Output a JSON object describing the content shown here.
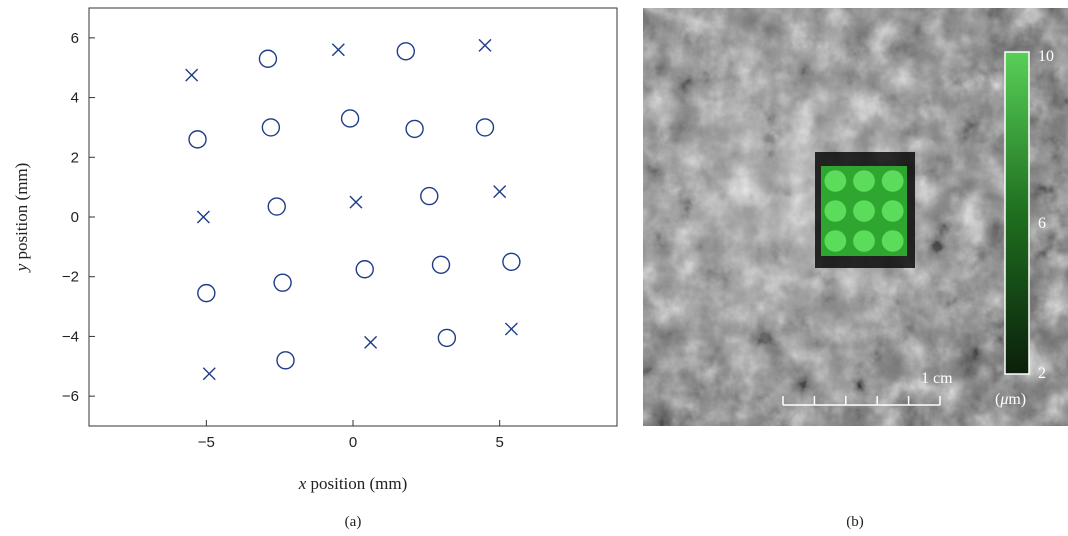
{
  "panel_a_label": "(a)",
  "panel_b_label": "(b)",
  "chart_data": [
    {
      "type": "scatter",
      "xlabel": "x position (mm)",
      "ylabel": "y position (mm)",
      "xlabel_var": "x",
      "xlabel_rest": " position (mm)",
      "ylabel_var": "y",
      "ylabel_rest": " position (mm)",
      "xlim": [
        -9,
        9
      ],
      "ylim": [
        -7,
        7
      ],
      "xticks": [
        -5,
        0,
        5
      ],
      "xtick_labels": [
        "−5",
        "0",
        "5"
      ],
      "yticks": [
        6,
        4,
        2,
        0,
        -2,
        -4,
        -6
      ],
      "ytick_labels": [
        "6",
        "4",
        "2",
        "0",
        "−2",
        "−4",
        "−6"
      ],
      "grid": false,
      "marker_color": "#1f3c88",
      "series": [
        {
          "marker": "circle",
          "points": [
            [
              -2.9,
              5.3
            ],
            [
              1.8,
              5.55
            ],
            [
              -5.3,
              2.6
            ],
            [
              -2.8,
              3.0
            ],
            [
              -0.1,
              3.3
            ],
            [
              2.1,
              2.95
            ],
            [
              4.5,
              3.0
            ],
            [
              -2.6,
              0.35
            ],
            [
              2.6,
              0.7
            ],
            [
              -5.0,
              -2.55
            ],
            [
              -2.4,
              -2.2
            ],
            [
              0.4,
              -1.75
            ],
            [
              3.0,
              -1.6
            ],
            [
              5.4,
              -1.5
            ],
            [
              -2.3,
              -4.8
            ],
            [
              3.2,
              -4.05
            ]
          ]
        },
        {
          "marker": "x",
          "points": [
            [
              -5.5,
              4.75
            ],
            [
              -0.5,
              5.6
            ],
            [
              4.5,
              5.75
            ],
            [
              -5.1,
              0.0
            ],
            [
              0.1,
              0.5
            ],
            [
              5.0,
              0.85
            ],
            [
              -4.9,
              -5.25
            ],
            [
              0.6,
              -4.2
            ],
            [
              5.4,
              -3.75
            ]
          ]
        }
      ]
    },
    {
      "type": "heatmap",
      "colorbar_max": "10",
      "colorbar_mid": "6",
      "colorbar_min": "2",
      "colorbar_range": [
        2,
        10
      ],
      "colorbar_unit_open": "(",
      "colorbar_unit_mu": "μ",
      "colorbar_unit_close": "m)",
      "scalebar_label": "1 cm",
      "scalebar_ticks": 6,
      "overlay_grid": {
        "cols": 3,
        "rows": 3
      },
      "colors": {
        "low": "#0b1f0b",
        "high": "#4bc94b",
        "overlay": "#2fa62f",
        "overlay_spot": "#5bdc5b"
      }
    }
  ]
}
